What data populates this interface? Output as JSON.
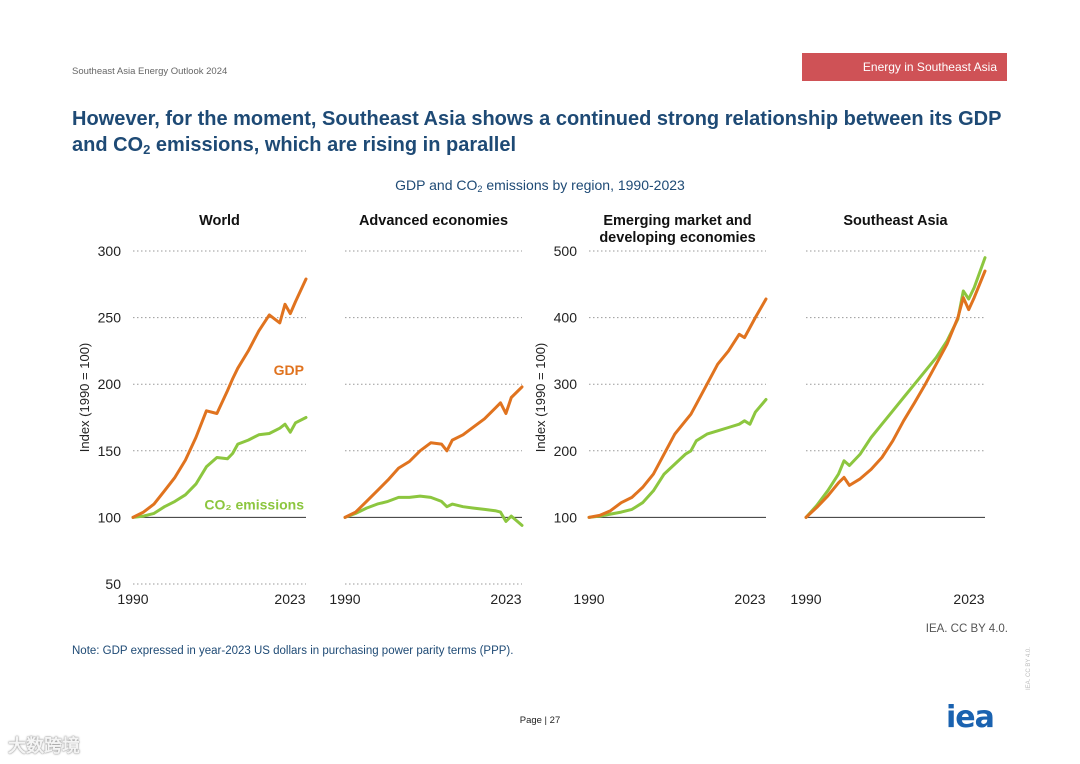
{
  "header": {
    "doc_title": "Southeast Asia Energy Outlook 2024",
    "section_tag": "Energy in Southeast Asia"
  },
  "headline": {
    "pre": "However, for the moment, Southeast Asia shows a continued strong relationship between its GDP and CO",
    "sub": "2",
    "post": " emissions, which are rising in parallel"
  },
  "figure_title": {
    "pre": "GDP and CO",
    "sub": "2",
    "post": " emissions by region, 1990-2023"
  },
  "footer": {
    "note": "Note: GDP expressed in year-2023 US dollars in purchasing power parity terms (PPP).",
    "credit": "IEA. CC BY 4.0.",
    "page": "Page | 27",
    "logo": "iea",
    "side_text": "IEA. CC BY 4.0.",
    "watermark": "大数跨境"
  },
  "colors": {
    "gdp": "#e0731f",
    "co2": "#8cc63f",
    "baseline": "#333333",
    "grid": "#9a9a9a",
    "text": "#1e4a75",
    "accent": "#cf5256"
  },
  "chart_data": [
    {
      "type": "line",
      "title": "World",
      "ylabel": "Index (1990 = 100)",
      "x": [
        1990,
        1992,
        1994,
        1996,
        1998,
        2000,
        2002,
        2004,
        2006,
        2008,
        2009,
        2010,
        2012,
        2014,
        2016,
        2018,
        2019,
        2020,
        2021,
        2023
      ],
      "xticks": [
        "1990",
        "2023"
      ],
      "yticks": [
        50,
        100,
        150,
        200,
        250,
        300
      ],
      "ylim": [
        50,
        300
      ],
      "baseline": 100,
      "series": [
        {
          "name": "GDP",
          "values": [
            100,
            104,
            110,
            120,
            130,
            143,
            160,
            180,
            178,
            195,
            204,
            212,
            225,
            240,
            252,
            246,
            260,
            253,
            262,
            279
          ]
        },
        {
          "name": "CO2 emissions",
          "values": [
            100,
            101,
            103,
            108,
            112,
            117,
            125,
            138,
            145,
            144,
            148,
            155,
            158,
            162,
            163,
            167,
            170,
            164,
            171,
            175
          ]
        }
      ],
      "annotations": [
        {
          "text": "GDP",
          "series": "GDP"
        },
        {
          "text": "CO2 emissions",
          "series": "CO2 emissions"
        }
      ]
    },
    {
      "type": "line",
      "title": "Advanced economies",
      "ylabel": "",
      "x": [
        1990,
        1992,
        1994,
        1996,
        1998,
        2000,
        2002,
        2004,
        2006,
        2008,
        2009,
        2010,
        2012,
        2014,
        2016,
        2018,
        2019,
        2020,
        2021,
        2023
      ],
      "xticks": [
        "1990",
        "2023"
      ],
      "yticks": [
        50,
        100,
        150,
        200,
        250,
        300
      ],
      "ylim": [
        50,
        300
      ],
      "baseline": 100,
      "series": [
        {
          "name": "GDP",
          "values": [
            100,
            104,
            112,
            120,
            128,
            137,
            142,
            150,
            156,
            155,
            150,
            158,
            162,
            168,
            174,
            182,
            186,
            178,
            190,
            198
          ]
        },
        {
          "name": "CO2 emissions",
          "values": [
            100,
            103,
            107,
            110,
            112,
            115,
            115,
            116,
            115,
            112,
            108,
            110,
            108,
            107,
            106,
            105,
            104,
            97,
            101,
            94
          ]
        }
      ]
    },
    {
      "type": "line",
      "title": "Emerging market and developing economies",
      "ylabel": "Index (1990 = 100)",
      "x": [
        1990,
        1992,
        1994,
        1996,
        1998,
        2000,
        2002,
        2004,
        2006,
        2008,
        2009,
        2010,
        2012,
        2014,
        2016,
        2018,
        2019,
        2020,
        2021,
        2023
      ],
      "xticks": [
        "1990",
        "2023"
      ],
      "yticks": [
        100,
        200,
        300,
        400,
        500
      ],
      "ylim": [
        0,
        500
      ],
      "baseline": 100,
      "series": [
        {
          "name": "GDP",
          "values": [
            100,
            103,
            110,
            122,
            130,
            145,
            165,
            195,
            225,
            245,
            255,
            270,
            300,
            330,
            350,
            375,
            370,
            385,
            400,
            428
          ]
        },
        {
          "name": "CO2 emissions",
          "values": [
            100,
            102,
            105,
            108,
            112,
            122,
            140,
            165,
            180,
            195,
            200,
            215,
            225,
            230,
            235,
            240,
            245,
            240,
            258,
            277
          ]
        }
      ]
    },
    {
      "type": "line",
      "title": "Southeast Asia",
      "ylabel": "",
      "x": [
        1990,
        1992,
        1994,
        1996,
        1997,
        1998,
        2000,
        2002,
        2004,
        2006,
        2008,
        2010,
        2012,
        2014,
        2016,
        2018,
        2019,
        2020,
        2021,
        2023
      ],
      "xticks": [
        "1990",
        "2023"
      ],
      "yticks": [
        100,
        200,
        300,
        400,
        500
      ],
      "ylim": [
        0,
        500
      ],
      "baseline": 100,
      "series": [
        {
          "name": "GDP",
          "values": [
            100,
            115,
            132,
            152,
            160,
            148,
            158,
            172,
            190,
            215,
            245,
            272,
            300,
            330,
            360,
            400,
            430,
            412,
            430,
            470
          ]
        },
        {
          "name": "CO2 emissions",
          "values": [
            100,
            118,
            140,
            165,
            185,
            178,
            195,
            220,
            240,
            260,
            280,
            300,
            320,
            340,
            365,
            398,
            440,
            428,
            445,
            490
          ]
        }
      ]
    }
  ]
}
